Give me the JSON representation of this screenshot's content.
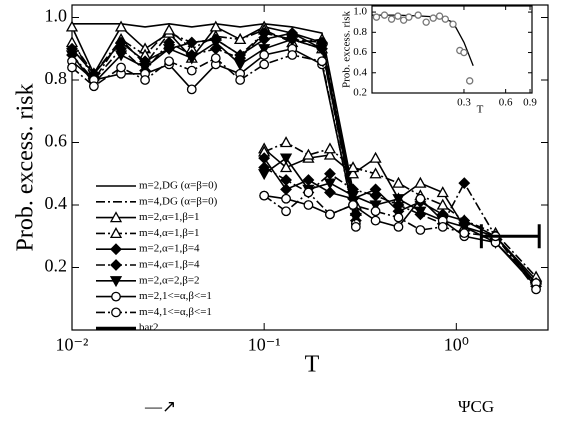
{
  "chart_data": [
    {
      "type": "line",
      "y_label": "Prob. excess. risk",
      "x_label": "T",
      "log_x": true,
      "xlim": [
        0.01,
        3
      ],
      "ylim": [
        0,
        1.04
      ],
      "xticks": [
        {
          "value": 0.01,
          "label": "10⁻²"
        },
        {
          "value": 0.1,
          "label": "10⁻¹"
        },
        {
          "value": 1,
          "label": "10⁰"
        }
      ],
      "yticks": [
        0.2,
        0.4,
        0.6,
        0.8,
        {
          "value": 1,
          "label": "1.0"
        }
      ],
      "series": [
        {
          "name": "m=2,DG (α=β=0)",
          "color": "#000",
          "dash": "solid",
          "marker": "none",
          "x": [
            0.01,
            0.013,
            0.018,
            0.024,
            0.032,
            0.042,
            0.056,
            0.075,
            0.1,
            0.14,
            0.2,
            0.3
          ],
          "values": [
            0.98,
            0.98,
            0.98,
            0.97,
            0.98,
            0.97,
            0.98,
            0.97,
            0.98,
            0.97,
            0.95,
            0.4
          ]
        },
        {
          "name": "m=4,DG (α=β=0)",
          "color": "#000",
          "dash": "dashdot",
          "marker": "none",
          "x": [
            0.01,
            0.013,
            0.018,
            0.024,
            0.032,
            0.042,
            0.056,
            0.075,
            0.1,
            0.14,
            0.2,
            0.3
          ],
          "values": [
            0.93,
            0.8,
            0.93,
            0.85,
            0.95,
            0.92,
            0.93,
            0.88,
            0.95,
            0.93,
            0.92,
            0.36
          ]
        },
        {
          "name": "m=2,α=1,β=1",
          "color": "#000",
          "dash": "solid",
          "marker": "triangle-open",
          "x": [
            0.01,
            0.013,
            0.018,
            0.024,
            0.032,
            0.042,
            0.056,
            0.075,
            0.1,
            0.14,
            0.2,
            0.3,
            null,
            0.1,
            0.13,
            0.17,
            0.22,
            0.29,
            0.38,
            0.5,
            0.65,
            0.85,
            1.1,
            1.6,
            2.6
          ],
          "values": [
            0.97,
            0.82,
            0.97,
            0.9,
            0.95,
            0.87,
            0.97,
            0.93,
            0.97,
            0.95,
            0.9,
            0.4,
            null,
            0.58,
            0.52,
            0.55,
            0.56,
            0.5,
            0.55,
            0.42,
            0.47,
            0.44,
            0.33,
            0.3,
            0.16
          ]
        },
        {
          "name": "m=4,α=1,β=1",
          "color": "#000",
          "dash": "dashdot",
          "marker": "triangle-open",
          "x": [
            0.01,
            0.013,
            0.018,
            0.024,
            0.032,
            0.042,
            0.056,
            0.075,
            0.1,
            0.14,
            0.2,
            0.3,
            null,
            0.1,
            0.13,
            0.17,
            0.22,
            0.29,
            0.38,
            0.5,
            0.65,
            0.85,
            1.1,
            1.6,
            2.6
          ],
          "values": [
            0.92,
            0.82,
            0.93,
            0.88,
            0.96,
            0.9,
            0.94,
            0.93,
            0.96,
            0.92,
            0.93,
            0.38,
            null,
            0.57,
            0.6,
            0.56,
            0.58,
            0.52,
            0.5,
            0.47,
            0.43,
            0.4,
            0.35,
            0.31,
            0.17
          ]
        },
        {
          "name": "m=2,α=1,β=4",
          "color": "#000",
          "dash": "solid",
          "marker": "diamond",
          "x": [
            0.01,
            0.013,
            0.018,
            0.024,
            0.032,
            0.042,
            0.056,
            0.075,
            0.1,
            0.14,
            0.2,
            0.3,
            null,
            0.1,
            0.13,
            0.17,
            0.22,
            0.29,
            0.38,
            0.5,
            0.65,
            0.85,
            1.1,
            1.6,
            2.6
          ],
          "values": [
            0.9,
            0.82,
            0.92,
            0.86,
            0.9,
            0.92,
            0.93,
            0.88,
            0.93,
            0.95,
            0.92,
            0.37,
            null,
            0.55,
            0.45,
            0.48,
            0.44,
            0.42,
            0.45,
            0.38,
            0.41,
            0.37,
            0.35,
            0.3,
            0.15
          ]
        },
        {
          "name": "m=4,α=1,β=4",
          "color": "#000",
          "dash": "dashdot",
          "marker": "diamond",
          "x": [
            0.01,
            0.013,
            0.018,
            0.024,
            0.032,
            0.042,
            0.056,
            0.075,
            0.1,
            0.14,
            0.2,
            0.3,
            null,
            0.1,
            0.13,
            0.17,
            0.22,
            0.29,
            0.38,
            0.5,
            0.65,
            0.85,
            1.1,
            1.6,
            2.6
          ],
          "values": [
            0.88,
            0.8,
            0.9,
            0.83,
            0.92,
            0.88,
            0.9,
            0.87,
            0.95,
            0.93,
            0.9,
            0.35,
            null,
            0.52,
            0.48,
            0.44,
            0.5,
            0.45,
            0.43,
            0.4,
            0.37,
            0.34,
            0.47,
            0.3,
            0.14
          ]
        },
        {
          "name": "m=2,α=2,β=2",
          "color": "#000",
          "dash": "solid",
          "marker": "triangle-down",
          "x": [
            0.01,
            0.013,
            0.018,
            0.024,
            0.032,
            0.042,
            0.056,
            0.075,
            0.1,
            0.14,
            0.2,
            0.3,
            null,
            0.1,
            0.13,
            0.17,
            0.22,
            0.29,
            0.38,
            0.5,
            0.65,
            0.85,
            1.1,
            1.6,
            2.6
          ],
          "values": [
            0.88,
            0.79,
            0.88,
            0.84,
            0.9,
            0.87,
            0.92,
            0.85,
            0.9,
            0.93,
            0.9,
            0.36,
            null,
            0.5,
            0.55,
            0.45,
            0.47,
            0.43,
            0.4,
            0.42,
            0.38,
            0.35,
            0.33,
            0.28,
            0.14
          ]
        },
        {
          "name": "m=2,1<=α,β<=1",
          "color": "#000",
          "dash": "solid",
          "marker": "circle-open",
          "x": [
            0.01,
            0.013,
            0.018,
            0.024,
            0.032,
            0.042,
            0.056,
            0.075,
            0.1,
            0.14,
            0.2,
            0.3,
            null,
            0.1,
            0.13,
            0.17,
            0.22,
            0.29,
            0.38,
            0.5,
            0.65,
            0.85,
            1.1,
            1.6,
            2.6
          ],
          "values": [
            0.86,
            0.8,
            0.82,
            0.82,
            0.85,
            0.77,
            0.85,
            0.82,
            0.88,
            0.9,
            0.85,
            0.34,
            null,
            0.43,
            0.42,
            0.4,
            0.37,
            0.4,
            0.35,
            0.33,
            0.42,
            0.35,
            0.3,
            0.28,
            0.15
          ]
        },
        {
          "name": "m=4,1<=α,β<=1",
          "color": "#000",
          "dash": "dashdot",
          "marker": "circle-open",
          "x": [
            0.01,
            0.013,
            0.018,
            0.024,
            0.032,
            0.042,
            0.056,
            0.075,
            0.1,
            0.14,
            0.2,
            0.3,
            null,
            0.1,
            0.13,
            0.17,
            0.22,
            0.29,
            0.38,
            0.5,
            0.65,
            0.85,
            1.1,
            1.6,
            2.6
          ],
          "values": [
            0.84,
            0.78,
            0.84,
            0.8,
            0.86,
            0.83,
            0.87,
            0.8,
            0.85,
            0.88,
            0.86,
            0.33,
            null,
            0.43,
            0.38,
            0.44,
            0.37,
            0.4,
            0.38,
            0.36,
            0.32,
            0.33,
            0.31,
            0.3,
            0.13
          ]
        },
        {
          "name": "bar2",
          "color": "#000",
          "dash": "solid",
          "marker": "errorbar",
          "x": [
            1.35,
            2.7
          ],
          "values": [
            0.3,
            0.3
          ]
        }
      ],
      "annotations": [
        "—↗",
        "ΨCG"
      ]
    },
    {
      "type": "line",
      "y_label": "Prob. excess. risk",
      "x_label": "T",
      "log_x": true,
      "xlim": [
        0.065,
        0.93
      ],
      "ylim": [
        0.2,
        1.06
      ],
      "xticks": [
        0.3,
        0.6,
        0.9
      ],
      "yticks": [
        0.2,
        0.4,
        0.6,
        0.8,
        {
          "value": 1,
          "label": "1.0"
        }
      ],
      "series": [
        {
          "color": "#000",
          "dash": "solid",
          "marker": "none",
          "x": [
            0.065,
            0.1,
            0.15,
            0.2,
            0.25,
            0.3,
            0.35
          ],
          "values": [
            0.97,
            0.97,
            0.96,
            0.95,
            0.9,
            0.7,
            0.47
          ]
        },
        {
          "color": "#777",
          "dash": "none",
          "marker": "circle-open",
          "x": [
            0.07,
            0.08,
            0.09,
            0.1,
            0.11,
            0.12,
            0.14,
            0.16,
            0.18,
            0.2,
            0.22,
            0.25,
            0.28,
            0.3,
            0.33
          ],
          "values": [
            0.95,
            0.97,
            0.93,
            0.96,
            0.92,
            0.95,
            0.97,
            0.9,
            0.94,
            0.96,
            0.93,
            0.88,
            0.62,
            0.6,
            0.32
          ]
        }
      ]
    }
  ]
}
